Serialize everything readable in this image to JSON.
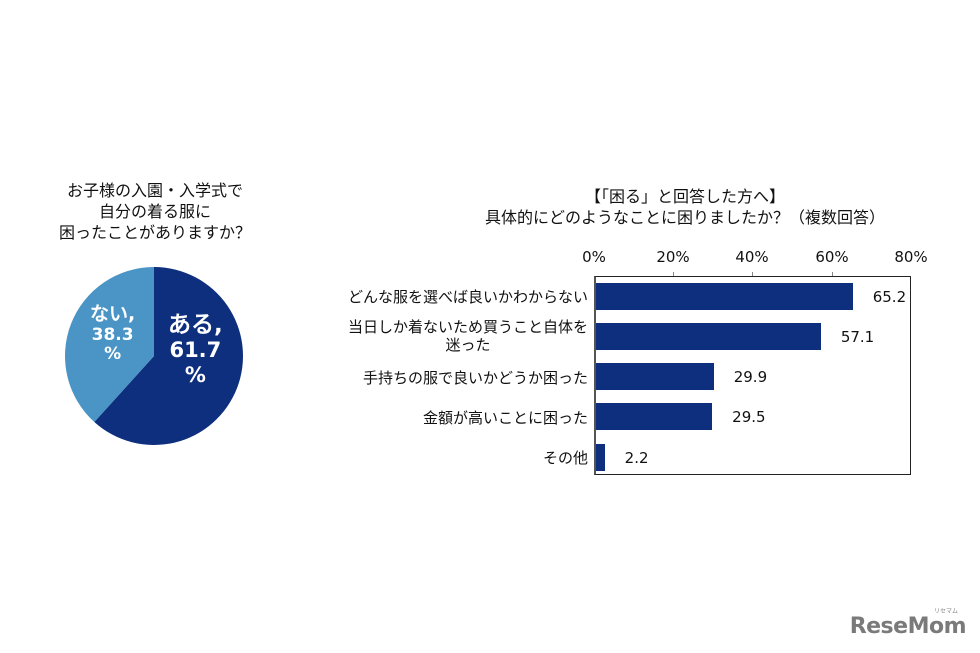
{
  "pie_chart": {
    "title_lines": [
      "お子様の入園・入学式で",
      "自分の着る服に",
      "困ったことがありますか？"
    ],
    "slices": [
      {
        "label": "ある,",
        "value_text": "61.7",
        "unit": "%",
        "color": "#0e2f7e"
      },
      {
        "label": "ない,",
        "value_text": "38.3",
        "unit": "%",
        "color": "#4a95c5"
      }
    ]
  },
  "bar_chart": {
    "title_lines": [
      "【「困る」と回答した方へ】",
      "具体的にどのようなことに困りましたか？（複数回答）"
    ],
    "ticks": [
      "0%",
      "20%",
      "40%",
      "60%",
      "80%"
    ],
    "categories": [
      {
        "lines": [
          "どんな服を選べば良いかわからない"
        ],
        "value_text": "65.2"
      },
      {
        "lines": [
          "当日しか着ないため買うこと自体を",
          "迷った"
        ],
        "value_text": "57.1"
      },
      {
        "lines": [
          "手持ちの服で良いかどうか困った"
        ],
        "value_text": "29.9"
      },
      {
        "lines": [
          "金額が高いことに困った"
        ],
        "value_text": "29.5"
      },
      {
        "lines": [
          "その他"
        ],
        "value_text": "2.2"
      }
    ],
    "bar_color": "#0e2f7e"
  },
  "logo": {
    "text": "ReseMom",
    "subtext": "リセマム"
  },
  "chart_data": [
    {
      "type": "pie",
      "title": "お子様の入園・入学式で自分の着る服に困ったことがありますか？",
      "categories": [
        "ある",
        "ない"
      ],
      "values": [
        61.7,
        38.3
      ],
      "unit": "%",
      "colors": [
        "#0e2f7e",
        "#4a95c5"
      ]
    },
    {
      "type": "bar",
      "orientation": "horizontal",
      "title": "【「困る」と回答した方へ】具体的にどのようなことに困りましたか？（複数回答）",
      "categories": [
        "どんな服を選べば良いかわからない",
        "当日しか着ないため買うこと自体を迷った",
        "手持ちの服で良いかどうか困った",
        "金額が高いことに困った",
        "その他"
      ],
      "values": [
        65.2,
        57.1,
        29.9,
        29.5,
        2.2
      ],
      "xlabel": "",
      "ylabel": "",
      "xlim": [
        0,
        80
      ],
      "xticks": [
        "0%",
        "20%",
        "40%",
        "60%",
        "80%"
      ],
      "grid": false,
      "legend": "none"
    }
  ]
}
